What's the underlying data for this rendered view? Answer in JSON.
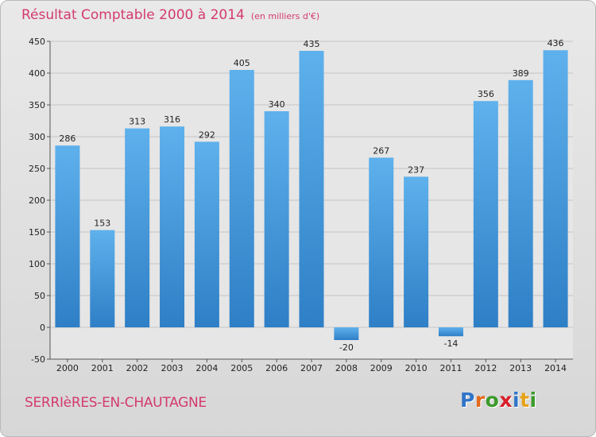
{
  "title": "Résultat Comptable 2000 à 2014",
  "unit": "(en milliers d'€)",
  "town": "SERRIèRES-EN-CHAUTAGNE",
  "logo": {
    "text": "Proxiti",
    "letter_colors": [
      "#2f74c8",
      "#e46a1c",
      "#3b9a2b",
      "#d81f2a",
      "#2f74c8",
      "#e5a31a",
      "#3b9a2b"
    ]
  },
  "colors": {
    "bar_light": "#5eb1ec",
    "bar_dark": "#2e7fc6",
    "title": "#d43a6d",
    "grid": "#c4c4c4"
  },
  "chart_data": {
    "type": "bar",
    "categories": [
      "2000",
      "2001",
      "2002",
      "2003",
      "2004",
      "2005",
      "2006",
      "2007",
      "2008",
      "2009",
      "2010",
      "2011",
      "2012",
      "2013",
      "2014"
    ],
    "values": [
      286,
      153,
      313,
      316,
      292,
      405,
      340,
      435,
      -20,
      267,
      237,
      -14,
      356,
      389,
      436
    ],
    "ylim": [
      -50,
      450
    ],
    "yticks": [
      -50,
      0,
      50,
      100,
      150,
      200,
      250,
      300,
      350,
      400,
      450
    ],
    "grid": true
  }
}
